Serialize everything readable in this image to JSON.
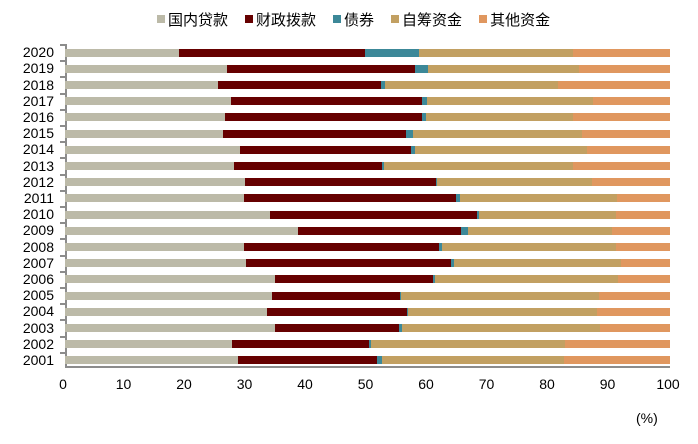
{
  "chart_data": {
    "type": "bar",
    "orientation": "horizontal",
    "stacked": true,
    "title": "",
    "xlabel": "",
    "ylabel": "",
    "unit_label": "(%)",
    "xlim": [
      0,
      100
    ],
    "x_ticks": [
      "0",
      "10",
      "20",
      "30",
      "40",
      "50",
      "60",
      "70",
      "80",
      "90",
      "100"
    ],
    "legend_position": "top",
    "grid": false,
    "categories": [
      "2020",
      "2019",
      "2018",
      "2017",
      "2016",
      "2015",
      "2014",
      "2013",
      "2012",
      "2011",
      "2010",
      "2009",
      "2008",
      "2007",
      "2006",
      "2005",
      "2004",
      "2003",
      "2002",
      "2001"
    ],
    "series": [
      {
        "name": "国内贷款",
        "color": "#BCBAA8",
        "values": [
          18.8,
          26.8,
          25.3,
          27.4,
          26.4,
          26.1,
          28.9,
          27.9,
          29.8,
          29.6,
          33.9,
          38.5,
          29.6,
          29.9,
          34.7,
          34.2,
          33.4,
          34.7,
          27.6,
          28.6
        ]
      },
      {
        "name": "财政拨款",
        "color": "#660000",
        "values": [
          30.8,
          31.1,
          26.9,
          31.6,
          32.6,
          30.3,
          28.3,
          24.5,
          31.5,
          35.0,
          34.2,
          27.0,
          32.2,
          33.9,
          26.1,
          21.2,
          23.1,
          20.5,
          22.6,
          23.0
        ]
      },
      {
        "name": "债券",
        "color": "#3C8898",
        "values": [
          8.9,
          2.1,
          0.7,
          0.8,
          0.7,
          1.1,
          0.7,
          0.3,
          0.2,
          0.7,
          0.3,
          1.1,
          0.5,
          0.5,
          0.4,
          0.1,
          0.2,
          0.5,
          0.4,
          0.8
        ]
      },
      {
        "name": "自筹资金",
        "color": "#C2A062",
        "values": [
          25.5,
          25.0,
          28.6,
          27.5,
          24.3,
          28.0,
          28.4,
          31.3,
          25.6,
          25.9,
          22.7,
          23.8,
          28.8,
          27.6,
          30.2,
          32.8,
          31.2,
          32.7,
          32.0,
          30.1
        ]
      },
      {
        "name": "其他资金",
        "color": "#E0975F",
        "values": [
          16.0,
          15.0,
          18.5,
          12.7,
          16.0,
          14.5,
          13.7,
          16.0,
          12.9,
          8.8,
          8.9,
          9.6,
          8.9,
          8.1,
          8.6,
          11.7,
          12.1,
          11.6,
          17.4,
          17.5
        ]
      }
    ]
  }
}
